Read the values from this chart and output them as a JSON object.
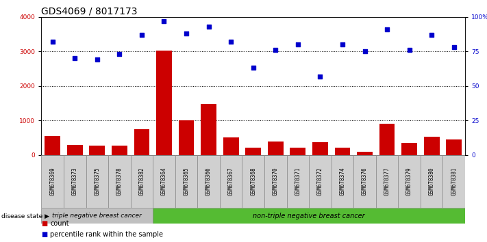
{
  "title": "GDS4069 / 8017173",
  "samples": [
    "GSM678369",
    "GSM678373",
    "GSM678375",
    "GSM678378",
    "GSM678382",
    "GSM678364",
    "GSM678365",
    "GSM678366",
    "GSM678367",
    "GSM678368",
    "GSM678370",
    "GSM678371",
    "GSM678372",
    "GSM678374",
    "GSM678376",
    "GSM678377",
    "GSM678379",
    "GSM678380",
    "GSM678381"
  ],
  "counts": [
    550,
    280,
    270,
    260,
    750,
    3020,
    1000,
    1480,
    500,
    200,
    390,
    200,
    370,
    200,
    100,
    900,
    340,
    530,
    440
  ],
  "percentile_ranks": [
    82,
    70,
    69,
    73,
    87,
    97,
    88,
    93,
    82,
    63,
    76,
    80,
    57,
    80,
    75,
    91,
    76,
    87,
    78
  ],
  "group1_count": 5,
  "group1_label": "triple negative breast cancer",
  "group2_label": "non-triple negative breast cancer",
  "bar_color": "#cc0000",
  "dot_color": "#0000cc",
  "bg_color_group1": "#c0c0c0",
  "bg_color_group2": "#55bb33",
  "left_yticks": [
    0,
    1000,
    2000,
    3000,
    4000
  ],
  "right_yticks": [
    0,
    25,
    50,
    75,
    100
  ],
  "right_yticklabels": [
    "0",
    "25",
    "50",
    "75",
    "100%"
  ],
  "ylim_left": [
    0,
    4000
  ],
  "ylim_right": [
    0,
    100
  ],
  "disease_state_label": "disease state",
  "legend_count_label": "count",
  "legend_percentile_label": "percentile rank within the sample",
  "title_fontsize": 10,
  "tick_label_fontsize": 6.5,
  "sample_label_fontsize": 5.5,
  "disease_fontsize": 6.5,
  "legend_fontsize": 7
}
